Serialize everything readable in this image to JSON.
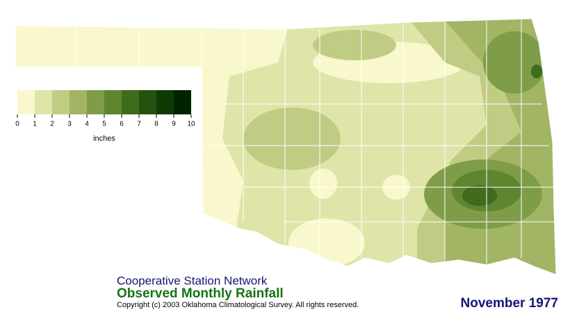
{
  "map": {
    "network": "Cooperative Station Network",
    "title": "Observed Monthly Rainfall",
    "copyright": "Copyright (c) 2003 Oklahoma Climatological Survey. All rights reserved.",
    "date": "November 1977"
  },
  "legend": {
    "ticks": [
      0,
      1,
      2,
      3,
      4,
      5,
      6,
      7,
      8,
      9,
      10
    ],
    "unit": "inches",
    "colors": [
      "#f8f8cc",
      "#dfe4a8",
      "#c0cc84",
      "#a2b565",
      "#7f9d48",
      "#5f8530",
      "#3f6b1c",
      "#255110",
      "#0f3a05",
      "#002300"
    ]
  }
}
